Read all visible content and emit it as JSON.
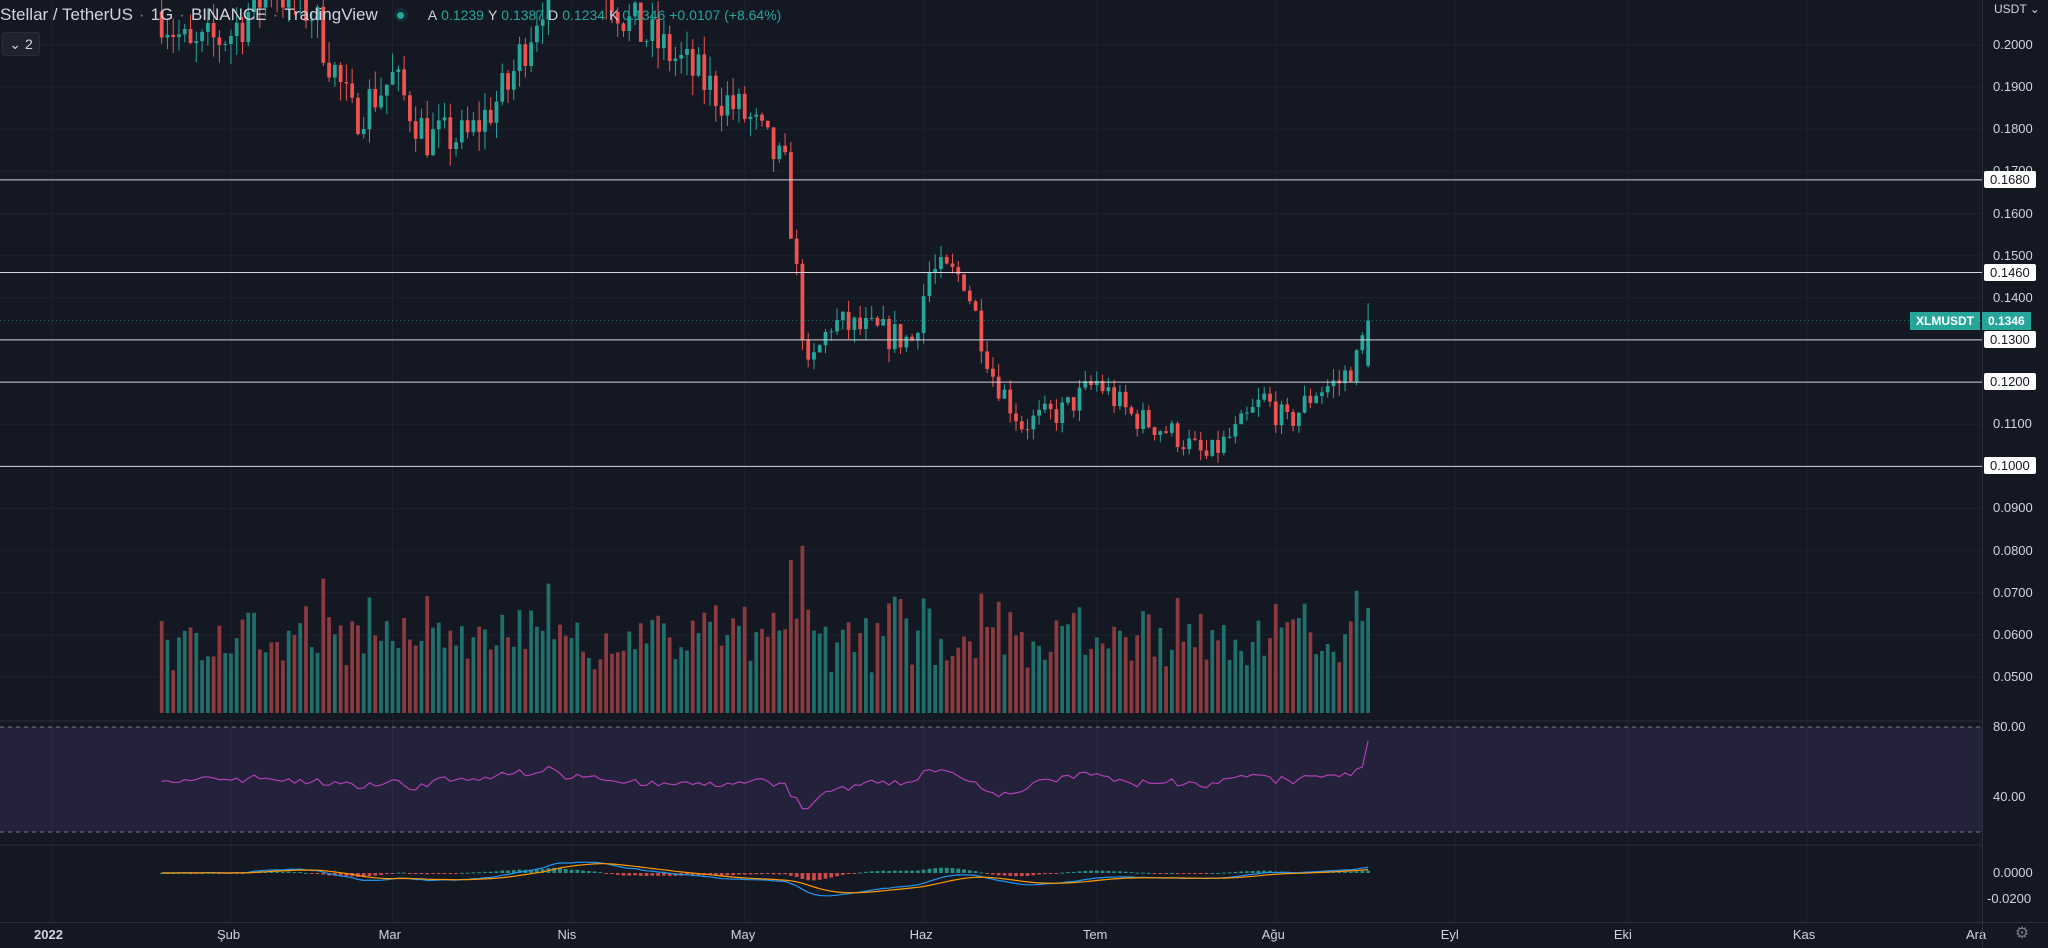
{
  "header": {
    "symbol_name": "Stellar / TetherUS",
    "interval": "1G",
    "exchange": "BINANCE",
    "platform": "TradingView",
    "ohlc": [
      {
        "key": "A",
        "value": "0.1239"
      },
      {
        "key": "Y",
        "value": "0.1387"
      },
      {
        "key": "D",
        "value": "0.1234"
      },
      {
        "key": "K",
        "value": "0.1346"
      },
      {
        "key": "",
        "value": "+0.0107 (+8.64%)"
      }
    ]
  },
  "indicator_toggle": {
    "count": "2",
    "icon": "chevron-down-icon"
  },
  "currency": "USDT",
  "price_badge": {
    "symbol": "XLMUSDT",
    "value": "0.1346"
  },
  "colors": {
    "background": "#141823",
    "up": "#26a69a",
    "down": "#ef5350",
    "volume_up": "#1f6f6a",
    "volume_down": "#8b3a3e",
    "rsi_line": "#b03fb5",
    "rsi_band": "#7e57c2",
    "macd_line": "#2196f3",
    "signal_line": "#ff9800",
    "level_line": "#d1d4dc"
  },
  "price_ticks": [
    "0.2000",
    "0.1900",
    "0.1800",
    "0.1700",
    "0.1600",
    "0.1500",
    "0.1400",
    "0.1300",
    "0.1200",
    "0.1100",
    "0.1000",
    "0.0900",
    "0.0800",
    "0.0700",
    "0.0600",
    "0.0500"
  ],
  "level_labels": [
    "0.1680",
    "0.1460",
    "0.1300",
    "0.1200",
    "0.1000"
  ],
  "rsi_ticks": [
    "80.00",
    "40.00"
  ],
  "macd_ticks": [
    "0.0000",
    "-0.0200"
  ],
  "time_labels": [
    "2022",
    "Şub",
    "Mar",
    "Nis",
    "May",
    "Haz",
    "Tem",
    "Ağu",
    "Eyl",
    "Eki",
    "Kas",
    "Ara"
  ],
  "chart_data": {
    "type": "candlestick",
    "symbol": "XLMUSDT",
    "price_axis_range": [
      0.04,
      0.205
    ],
    "horizontal_levels": [
      0.168,
      0.146,
      0.13,
      0.12,
      0.1
    ],
    "last": {
      "open": 0.1239,
      "high": 0.1387,
      "low": 0.1234,
      "close": 0.1346,
      "change": "+0.0107 (+8.64%)"
    },
    "close_path": [
      {
        "date": "2022-01-20",
        "close": 0.208
      },
      {
        "date": "2022-01-25",
        "close": 0.198
      },
      {
        "date": "2022-02-01",
        "close": 0.203
      },
      {
        "date": "2022-02-08",
        "close": 0.214
      },
      {
        "date": "2022-02-15",
        "close": 0.208
      },
      {
        "date": "2022-02-22",
        "close": 0.183
      },
      {
        "date": "2022-03-01",
        "close": 0.192
      },
      {
        "date": "2022-03-07",
        "close": 0.178
      },
      {
        "date": "2022-03-14",
        "close": 0.178
      },
      {
        "date": "2022-03-21",
        "close": 0.19
      },
      {
        "date": "2022-03-28",
        "close": 0.215
      },
      {
        "date": "2022-04-04",
        "close": 0.222
      },
      {
        "date": "2022-04-11",
        "close": 0.205
      },
      {
        "date": "2022-04-18",
        "close": 0.198
      },
      {
        "date": "2022-04-25",
        "close": 0.19
      },
      {
        "date": "2022-05-02",
        "close": 0.182
      },
      {
        "date": "2022-05-08",
        "close": 0.17
      },
      {
        "date": "2022-05-11",
        "close": 0.133
      },
      {
        "date": "2022-05-12",
        "close": 0.122
      },
      {
        "date": "2022-05-16",
        "close": 0.134
      },
      {
        "date": "2022-05-23",
        "close": 0.132
      },
      {
        "date": "2022-05-30",
        "close": 0.13
      },
      {
        "date": "2022-06-02",
        "close": 0.146
      },
      {
        "date": "2022-06-08",
        "close": 0.145
      },
      {
        "date": "2022-06-13",
        "close": 0.122
      },
      {
        "date": "2022-06-18",
        "close": 0.11
      },
      {
        "date": "2022-06-25",
        "close": 0.113
      },
      {
        "date": "2022-07-01",
        "close": 0.12
      },
      {
        "date": "2022-07-07",
        "close": 0.112
      },
      {
        "date": "2022-07-14",
        "close": 0.108
      },
      {
        "date": "2022-07-20",
        "close": 0.102
      },
      {
        "date": "2022-07-25",
        "close": 0.108
      },
      {
        "date": "2022-07-30",
        "close": 0.116
      },
      {
        "date": "2022-08-03",
        "close": 0.11
      },
      {
        "date": "2022-08-08",
        "close": 0.118
      },
      {
        "date": "2022-08-12",
        "close": 0.12
      },
      {
        "date": "2022-08-15",
        "close": 0.125
      },
      {
        "date": "2022-08-17",
        "close": 0.1346
      }
    ],
    "volume_axis_label": "",
    "rsi": {
      "upper_band": 80,
      "lower_band": 20,
      "last": 72
    },
    "macd": {
      "range": [
        -0.025,
        0.005
      ]
    }
  }
}
